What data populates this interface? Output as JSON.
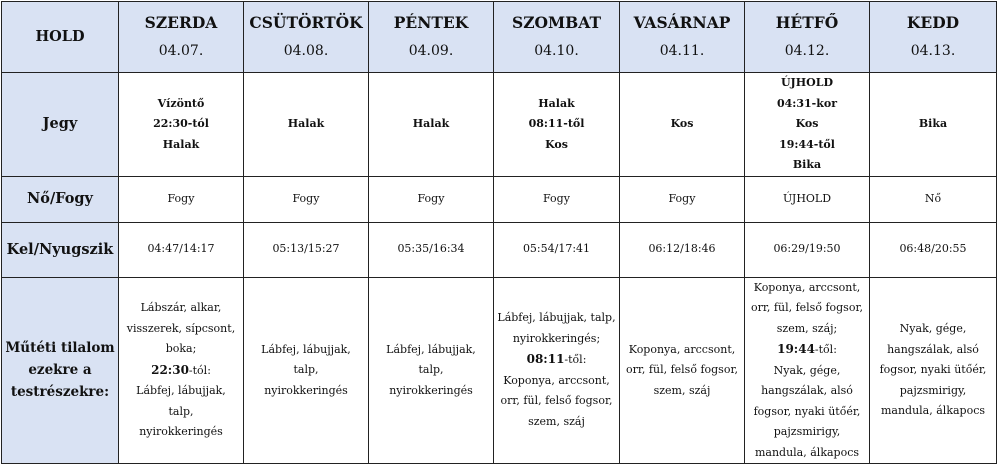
{
  "corner": "HOLD",
  "days": [
    {
      "name": "SZERDA",
      "date": "04.07."
    },
    {
      "name": "CSÜTÖRTÖK",
      "date": "04.08."
    },
    {
      "name": "PÉNTEK",
      "date": "04.09."
    },
    {
      "name": "SZOMBAT",
      "date": "04.10."
    },
    {
      "name": "VASÁRNAP",
      "date": "04.11."
    },
    {
      "name": "HÉTFŐ",
      "date": "04.12."
    },
    {
      "name": "KEDD",
      "date": "04.13."
    }
  ],
  "rows": [
    {
      "label": "Jegy",
      "bold": true,
      "cells": [
        [
          [
            {
              "t": "Vízöntő"
            }
          ],
          [
            {
              "t": "22:30-tól"
            }
          ],
          [
            {
              "t": "Halak"
            }
          ]
        ],
        [
          [
            {
              "t": "Halak"
            }
          ]
        ],
        [
          [
            {
              "t": "Halak"
            }
          ]
        ],
        [
          [
            {
              "t": "Halak"
            }
          ],
          [
            {
              "t": "08:11-től"
            }
          ],
          [
            {
              "t": "Kos"
            }
          ]
        ],
        [
          [
            {
              "t": "Kos"
            }
          ]
        ],
        [
          [
            {
              "t": "ÚJHOLD"
            }
          ],
          [
            {
              "t": "04:31-kor"
            }
          ],
          [
            {
              "t": "Kos"
            }
          ],
          [
            {
              "t": "19:44-től"
            }
          ],
          [
            {
              "t": "Bika"
            }
          ]
        ],
        [
          [
            {
              "t": "Bika"
            }
          ]
        ]
      ]
    },
    {
      "label": "Nő/Fogy",
      "bold": false,
      "cells": [
        [
          [
            {
              "t": "Fogy"
            }
          ]
        ],
        [
          [
            {
              "t": "Fogy"
            }
          ]
        ],
        [
          [
            {
              "t": "Fogy"
            }
          ]
        ],
        [
          [
            {
              "t": "Fogy"
            }
          ]
        ],
        [
          [
            {
              "t": "Fogy"
            }
          ]
        ],
        [
          [
            {
              "t": "ÚJHOLD"
            }
          ]
        ],
        [
          [
            {
              "t": "Nő"
            }
          ]
        ]
      ]
    },
    {
      "label": "Kel/Nyugszik",
      "bold": false,
      "cells": [
        [
          [
            {
              "t": "04:47/14:17"
            }
          ]
        ],
        [
          [
            {
              "t": "05:13/15:27"
            }
          ]
        ],
        [
          [
            {
              "t": "05:35/16:34"
            }
          ]
        ],
        [
          [
            {
              "t": "05:54/17:41"
            }
          ]
        ],
        [
          [
            {
              "t": "06:12/18:46"
            }
          ]
        ],
        [
          [
            {
              "t": "06:29/19:50"
            }
          ]
        ],
        [
          [
            {
              "t": "06:48/20:55"
            }
          ]
        ]
      ]
    },
    {
      "label": "Műtéti tilalom ezekre a testrészekre:",
      "bold": false,
      "cells": [
        [
          [
            {
              "t": "Lábszár, alkar,"
            }
          ],
          [
            {
              "t": "visszerek, sípcsont,"
            }
          ],
          [
            {
              "t": "boka;"
            }
          ],
          [
            {
              "t": "22:30",
              "b": true
            },
            {
              "t": "-tól:"
            }
          ],
          [
            {
              "t": "Lábfej, lábujjak, talp,"
            }
          ],
          [
            {
              "t": "nyirokkeringés"
            }
          ]
        ],
        [
          [
            {
              "t": "Lábfej, lábujjak, talp,"
            }
          ],
          [
            {
              "t": "nyirokkeringés"
            }
          ]
        ],
        [
          [
            {
              "t": "Lábfej, lábujjak, talp,"
            }
          ],
          [
            {
              "t": "nyirokkeringés"
            }
          ]
        ],
        [
          [
            {
              "t": "Lábfej, lábujjak, talp,"
            }
          ],
          [
            {
              "t": "nyirokkeringés;"
            }
          ],
          [
            {
              "t": "08:11",
              "b": true
            },
            {
              "t": "-től:"
            }
          ],
          [
            {
              "t": "Koponya, arccsont,"
            }
          ],
          [
            {
              "t": "orr, fül, felső fogsor,"
            }
          ],
          [
            {
              "t": "szem, száj"
            }
          ]
        ],
        [
          [
            {
              "t": "Koponya, arccsont,"
            }
          ],
          [
            {
              "t": "orr, fül, felső fogsor,"
            }
          ],
          [
            {
              "t": "szem, száj"
            }
          ]
        ],
        [
          [
            {
              "t": "Koponya, arccsont,"
            }
          ],
          [
            {
              "t": "orr, fül, felső fogsor,"
            }
          ],
          [
            {
              "t": "szem, száj;"
            }
          ],
          [
            {
              "t": "19:44",
              "b": true
            },
            {
              "t": "-től:"
            }
          ],
          [
            {
              "t": "Nyak, gége,"
            }
          ],
          [
            {
              "t": "hangszálak, alsó"
            }
          ],
          [
            {
              "t": "fogsor, nyaki ütőér,"
            }
          ],
          [
            {
              "t": "pajzsmirigy,"
            }
          ],
          [
            {
              "t": "mandula, álkapocs"
            }
          ]
        ],
        [
          [
            {
              "t": "Nyak, gége,"
            }
          ],
          [
            {
              "t": "hangszálak, alsó"
            }
          ],
          [
            {
              "t": "fogsor, nyaki ütőér,"
            }
          ],
          [
            {
              "t": "pajzsmirigy,"
            }
          ],
          [
            {
              "t": "mandula, álkapocs"
            }
          ]
        ]
      ]
    }
  ]
}
